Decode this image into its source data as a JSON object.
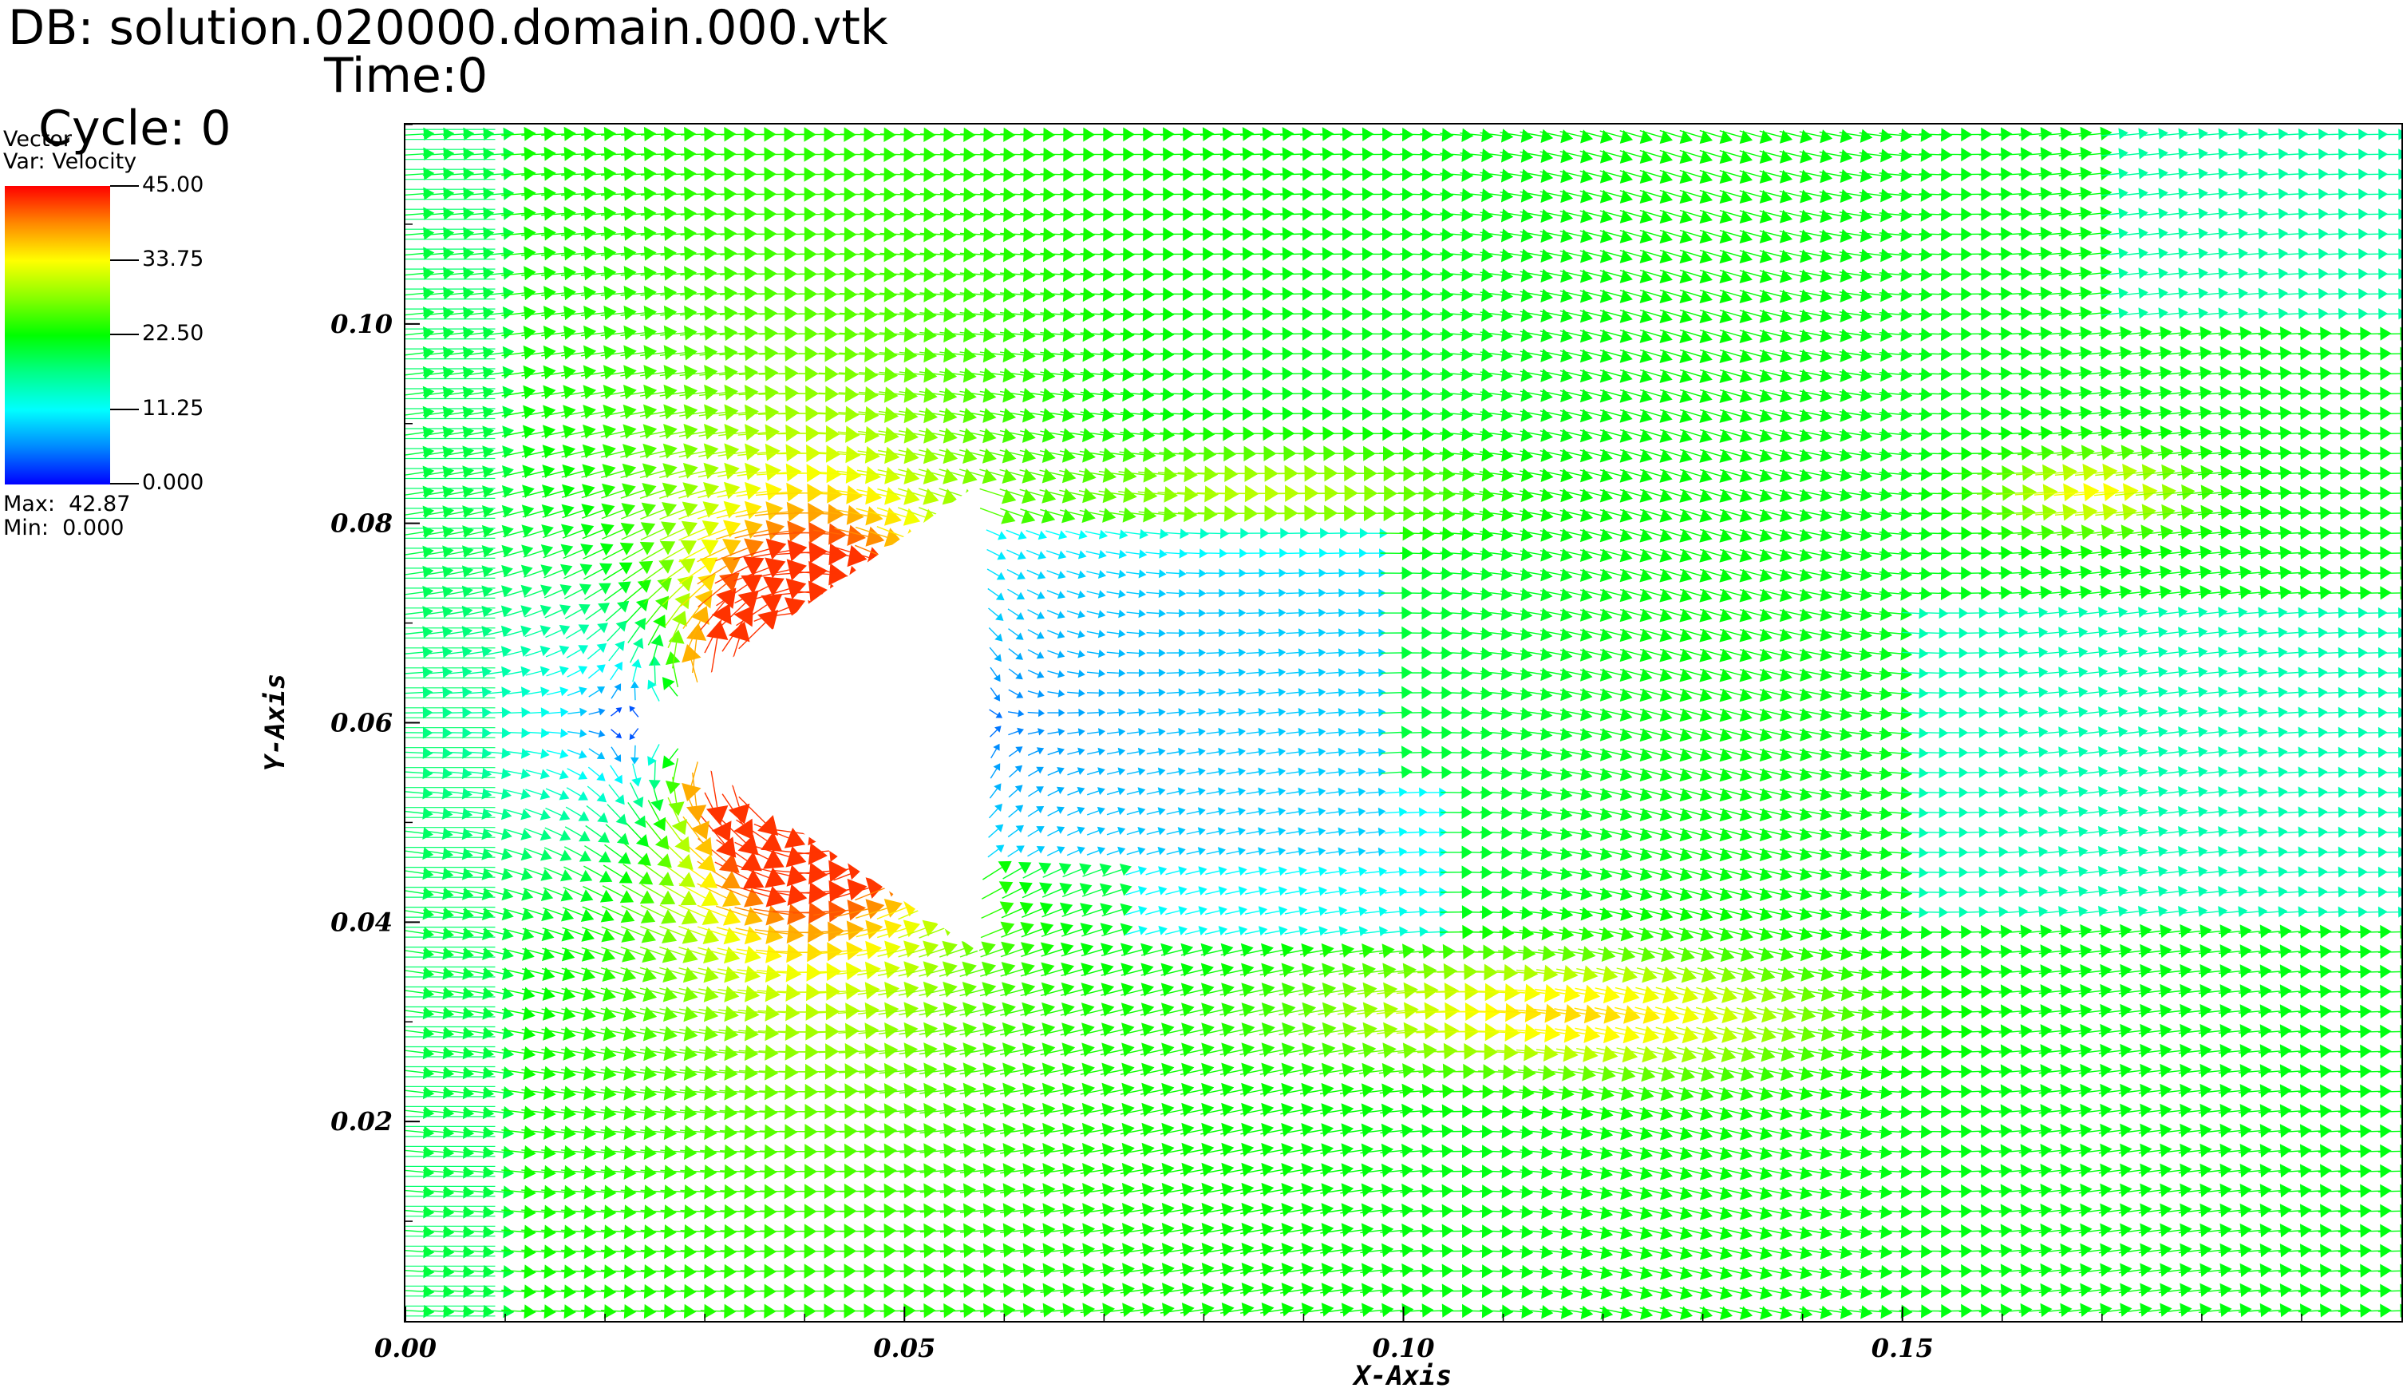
{
  "header": {
    "db_text": "DB: solution.020000.domain.000.vtk",
    "cycle_text": "Cycle: 0",
    "time_text": "Time:0"
  },
  "legend": {
    "title": "Vector",
    "var": "Var: Velocity",
    "labels": [
      "45.00",
      "33.75",
      "22.50",
      "11.25",
      "0.000"
    ],
    "max_text": "Max:  42.87",
    "min_text": "Min:  0.000",
    "colormap": [
      "#ff0000",
      "#ff8800",
      "#ffff00",
      "#88ff00",
      "#00ff00",
      "#00ff88",
      "#00ffff",
      "#0088ff",
      "#0000ff"
    ]
  },
  "chart_data": {
    "type": "vector-field",
    "variable": "Velocity",
    "xlabel": "X-Axis",
    "ylabel": "Y-Axis",
    "xlim": [
      0.0,
      0.2
    ],
    "ylim": [
      0.0,
      0.12
    ],
    "x_ticks": [
      "0.00",
      "0.05",
      "0.10",
      "0.15"
    ],
    "y_ticks": [
      "0.02",
      "0.04",
      "0.06",
      "0.08",
      "0.10"
    ],
    "x_tick_values": [
      0.0,
      0.05,
      0.1,
      0.15
    ],
    "y_tick_values": [
      0.02,
      0.04,
      0.06,
      0.08,
      0.1
    ],
    "color_range": [
      0.0,
      45.0
    ],
    "max": 42.87,
    "min": 0.0,
    "inlet_speed": 22.0,
    "obstacle": {
      "shape": "triangle",
      "vertices": [
        [
          0.0235,
          0.06
        ],
        [
          0.0575,
          0.084
        ],
        [
          0.0575,
          0.037
        ]
      ]
    }
  }
}
